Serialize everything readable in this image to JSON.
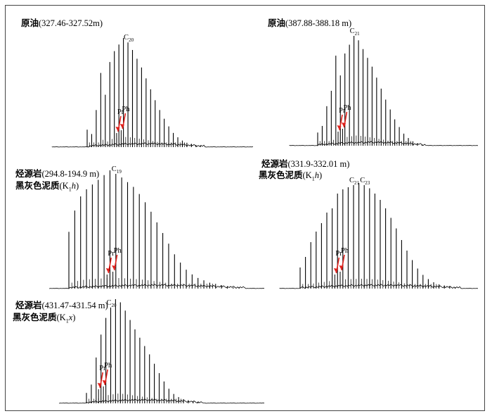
{
  "colors": {
    "trace": "#000000",
    "arrow": "#e0201b",
    "frame": "#444444"
  },
  "chart_data": [
    {
      "type": "line",
      "title_cn": "原油",
      "title_range": "(327.46-327.52m)",
      "subtitle_cn": "",
      "subtitle_formation": "",
      "carbon_start": 11,
      "peaks": [
        16,
        12,
        34,
        68,
        48,
        78,
        88,
        94,
        100,
        96,
        89,
        81,
        73,
        63,
        53,
        43,
        34,
        26,
        19,
        13,
        9,
        6,
        4,
        3,
        2,
        1
      ],
      "labeled_peaks": [
        {
          "carbon": 20,
          "prefix": "C",
          "sub": "20"
        }
      ],
      "markers": [
        {
          "label": "Pr",
          "after_carbon": 17
        },
        {
          "label": "Ph",
          "after_carbon": 18
        }
      ]
    },
    {
      "type": "line",
      "title_cn": "原油",
      "title_range": "(387.88-388.18 m)",
      "subtitle_cn": "",
      "subtitle_formation": "",
      "carbon_start": 13,
      "peaks": [
        12,
        18,
        36,
        50,
        82,
        64,
        84,
        92,
        100,
        96,
        88,
        80,
        72,
        62,
        52,
        42,
        33,
        24,
        17,
        11,
        7,
        4,
        2,
        1
      ],
      "labeled_peaks": [
        {
          "carbon": 21,
          "prefix": "C",
          "sub": "21"
        }
      ],
      "markers": [
        {
          "label": "Pr",
          "after_carbon": 17
        },
        {
          "label": "Ph",
          "after_carbon": 18
        }
      ]
    },
    {
      "type": "line",
      "title_cn": "烃源岩",
      "title_range": "(294.8-194.9 m)",
      "subtitle_cn": "黑灰色泥质",
      "subtitle_formation": "h",
      "carbon_start": 11,
      "peaks": [
        48,
        66,
        78,
        84,
        88,
        92,
        96,
        100,
        97,
        94,
        90,
        86,
        80,
        73,
        65,
        56,
        47,
        38,
        29,
        22,
        16,
        12,
        9,
        7,
        5,
        4,
        3,
        2,
        1,
        1
      ],
      "labeled_peaks": [
        {
          "carbon": 19,
          "prefix": "C",
          "sub": "19"
        }
      ],
      "markers": [
        {
          "label": "Pr",
          "after_carbon": 17
        },
        {
          "label": "Ph",
          "after_carbon": 18
        }
      ]
    },
    {
      "type": "line",
      "title_cn": "烃源岩",
      "title_range": "(331.9-332.01 m)",
      "subtitle_cn": "黑灰色泥质",
      "subtitle_formation": "h",
      "carbon_start": 11,
      "peaks": [
        20,
        30,
        44,
        54,
        62,
        72,
        76,
        90,
        94,
        96,
        98,
        100,
        98,
        95,
        90,
        84,
        76,
        67,
        57,
        46,
        36,
        27,
        19,
        13,
        9,
        6,
        4,
        3,
        2,
        1
      ],
      "labeled_peaks": [
        {
          "carbon": 21,
          "prefix": "C",
          "sub": "21"
        },
        {
          "carbon": 23,
          "prefix": "C",
          "sub": "23"
        }
      ],
      "markers": [
        {
          "label": "Pr",
          "after_carbon": 17
        },
        {
          "label": "Ph",
          "after_carbon": 18
        }
      ]
    },
    {
      "type": "line",
      "title_cn": "烃源岩",
      "title_range": "(431.47-431.54 m)",
      "subtitle_cn": "黑灰色泥质",
      "subtitle_formation": "x",
      "carbon_start": 15,
      "peaks": [
        10,
        18,
        44,
        66,
        82,
        92,
        100,
        97,
        89,
        80,
        71,
        63,
        55,
        47,
        38,
        29,
        21,
        14,
        9,
        6,
        4,
        3,
        2,
        1
      ],
      "labeled_peaks": [
        {
          "carbon": 20,
          "prefix": "C",
          "sub": "20"
        }
      ],
      "markers": [
        {
          "label": "Pr",
          "after_carbon": 17
        },
        {
          "label": "Ph",
          "after_carbon": 18
        }
      ]
    }
  ]
}
